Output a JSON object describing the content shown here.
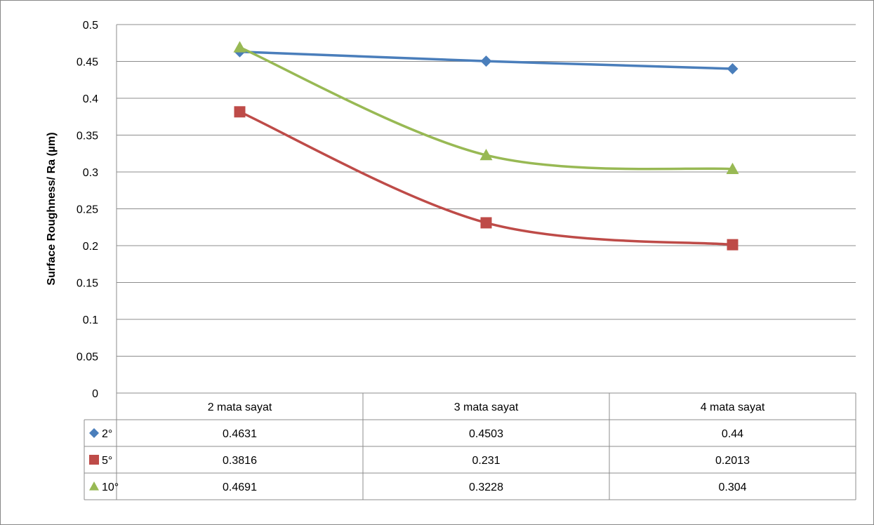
{
  "chart_data": {
    "type": "line",
    "ylabel": "Surface Roughness/ Ra (µm)",
    "xlabel": "",
    "categories": [
      "2 mata sayat",
      "3 mata sayat",
      "4 mata sayat"
    ],
    "ylim": [
      0,
      0.5
    ],
    "yticks": [
      "0",
      "0.05",
      "0.1",
      "0.15",
      "0.2",
      "0.25",
      "0.3",
      "0.35",
      "0.4",
      "0.45",
      "0.5"
    ],
    "grid": true,
    "legend": "data-table",
    "series": [
      {
        "name": "2°",
        "values": [
          0.4631,
          0.4503,
          0.44
        ],
        "labels": [
          "0.4631",
          "0.4503",
          "0.44"
        ],
        "color": "#4A7EBB",
        "marker": "diamond",
        "smooth": false
      },
      {
        "name": "5°",
        "values": [
          0.3816,
          0.231,
          0.2013
        ],
        "labels": [
          "0.3816",
          "0.231",
          "0.2013"
        ],
        "color": "#BE4B48",
        "marker": "square",
        "smooth": true
      },
      {
        "name": "10°",
        "values": [
          0.4691,
          0.3228,
          0.304
        ],
        "labels": [
          "0.4691",
          "0.3228",
          "0.304"
        ],
        "color": "#98B954",
        "marker": "triangle",
        "smooth": true
      }
    ]
  }
}
